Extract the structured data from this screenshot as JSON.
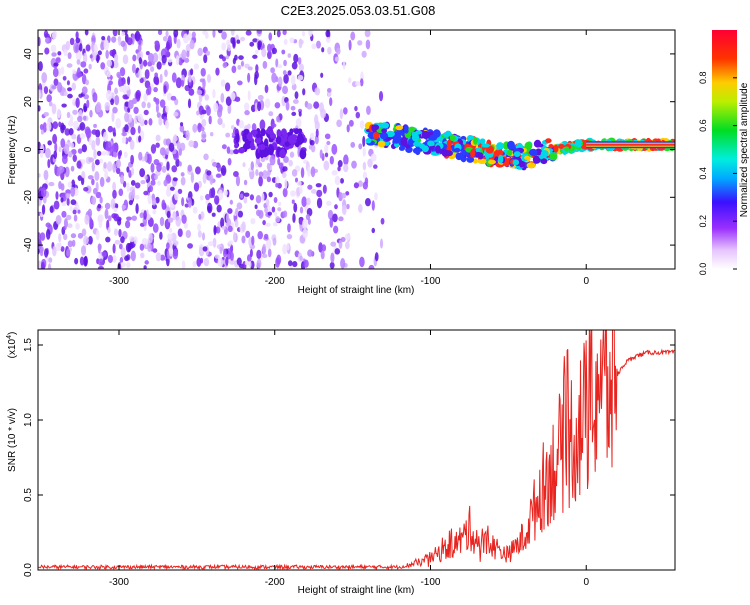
{
  "title": "C2E3.2025.053.03.51.G08",
  "colors": {
    "background": "#ffffff",
    "snr_line": "#e8241f",
    "axis": "#000000"
  },
  "chart_data": [
    {
      "type": "heatmap",
      "xlabel": "Height of straight line (km)",
      "ylabel": "Frequency (Hz)",
      "xlim": [
        -352,
        57
      ],
      "ylim": [
        -50,
        50
      ],
      "xticks": [
        "-300",
        "-200",
        "-100",
        "0"
      ],
      "yticks": [
        "-40",
        "-20",
        "0",
        "20",
        "40"
      ],
      "colorbar": {
        "label": "Normalized spectral amplitude",
        "range": [
          0,
          1
        ],
        "ticks": [
          "0.0",
          "0.2",
          "0.4",
          "0.6",
          "0.8"
        ],
        "colormap": "rainbow (white-violet-blue-cyan-green-yellow-red)"
      },
      "ridge": {
        "description": "frequency track of the signal",
        "points": [
          [
            -140,
            7
          ],
          [
            -120,
            5
          ],
          [
            -100,
            3
          ],
          [
            -80,
            1
          ],
          [
            -60,
            -2
          ],
          [
            -40,
            -3
          ],
          [
            -20,
            0
          ],
          [
            0,
            2
          ],
          [
            20,
            2
          ],
          [
            57,
            2
          ]
        ]
      }
    },
    {
      "type": "line",
      "xlabel": "Height of straight line (km)",
      "ylabel": "SNR (10 * v/v)",
      "scale_label": "(x10",
      "scale_exponent": "4",
      "scale_suffix": ")",
      "xlim": [
        -352,
        57
      ],
      "ylim": [
        0,
        1.6
      ],
      "xticks": [
        "-300",
        "-200",
        "-100",
        "0"
      ],
      "yticks": [
        "0.0",
        "0.5",
        "1.0",
        "1.5"
      ],
      "series": [
        {
          "x": [
            -352,
            -300,
            -250,
            -200,
            -150,
            -120,
            -110,
            -100,
            -90,
            -80,
            -75,
            -70,
            -60,
            -50,
            -40,
            -35,
            -30,
            -25,
            -20,
            -15,
            -10,
            -5,
            0,
            5,
            8,
            10,
            15,
            20,
            25,
            30,
            40,
            50,
            57
          ],
          "y": [
            0.02,
            0.02,
            0.02,
            0.02,
            0.02,
            0.02,
            0.04,
            0.08,
            0.14,
            0.2,
            0.28,
            0.2,
            0.16,
            0.1,
            0.22,
            0.35,
            0.5,
            0.62,
            0.7,
            0.82,
            0.88,
            0.95,
            1.02,
            1.1,
            1.35,
            1.2,
            1.2,
            1.3,
            1.38,
            1.42,
            1.45,
            1.45,
            1.45
          ]
        }
      ]
    }
  ]
}
